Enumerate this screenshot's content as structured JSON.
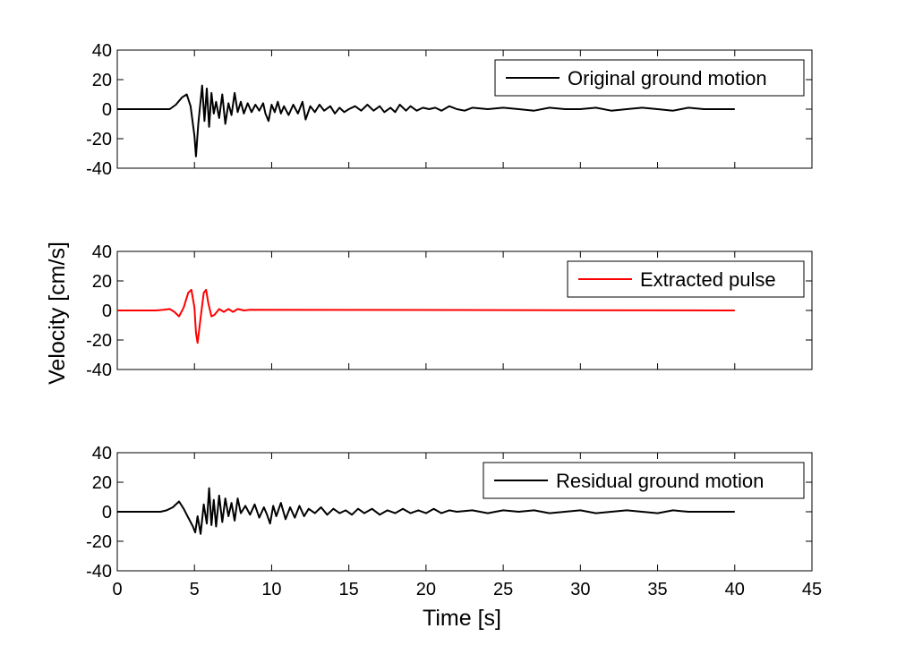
{
  "figure": {
    "xlabel": "Time [s]",
    "ylabel": "Velocity [cm/s]"
  },
  "chart_data": [
    {
      "type": "line",
      "xlabel": "",
      "ylabel": "",
      "xlim": [
        0,
        45
      ],
      "ylim": [
        -40,
        40
      ],
      "xticks": [
        0,
        5,
        10,
        15,
        20,
        25,
        30,
        35,
        40,
        45
      ],
      "yticks": [
        -40,
        -20,
        0,
        20,
        40
      ],
      "show_xtick_labels": false,
      "grid": false,
      "legend_position": "top-right",
      "series": [
        {
          "name": "Original ground motion",
          "color": "#000000",
          "x": [
            0,
            3.4,
            3.8,
            4.2,
            4.5,
            4.75,
            5.0,
            5.1,
            5.25,
            5.5,
            5.65,
            5.8,
            5.95,
            6.1,
            6.25,
            6.4,
            6.6,
            6.8,
            7.0,
            7.2,
            7.4,
            7.6,
            7.8,
            8.0,
            8.2,
            8.45,
            8.7,
            8.95,
            9.2,
            9.45,
            9.6,
            9.8,
            10.0,
            10.2,
            10.4,
            10.6,
            10.8,
            11.1,
            11.4,
            11.7,
            12.0,
            12.2,
            12.5,
            12.8,
            13.1,
            13.4,
            13.8,
            14.1,
            14.4,
            14.7,
            15.0,
            15.4,
            15.8,
            16.2,
            16.6,
            17.0,
            17.3,
            17.7,
            18.0,
            18.3,
            18.7,
            19.0,
            19.4,
            19.8,
            20.2,
            20.6,
            21.0,
            21.5,
            22.0,
            22.5,
            23.0,
            24.0,
            25.0,
            26.0,
            27.0,
            28.0,
            29.0,
            30.0,
            31.0,
            32.0,
            33.0,
            34.0,
            35.0,
            36.0,
            37.0,
            38.0,
            39.0,
            40.0
          ],
          "y": [
            0,
            0,
            3,
            8,
            10,
            2,
            -18,
            -32,
            -10,
            16,
            -8,
            14,
            -12,
            11,
            -3,
            5,
            -6,
            10,
            -10,
            4,
            -4,
            11,
            -2,
            5,
            -3,
            4,
            -2,
            3,
            -1,
            4,
            -3,
            -8,
            3,
            -2,
            5,
            -3,
            2,
            -4,
            3,
            -3,
            5,
            -7,
            2,
            -2,
            3,
            -1,
            2,
            -3,
            1,
            -2,
            0,
            2,
            -1,
            3,
            -1,
            2,
            -2,
            1,
            -2,
            3,
            -1,
            2,
            -1,
            1,
            0,
            1,
            -1,
            2,
            0,
            -1,
            1,
            0,
            1,
            0,
            -1,
            1,
            0,
            0,
            1,
            -1,
            0,
            1,
            0,
            -1,
            1,
            0,
            0,
            0
          ]
        }
      ]
    },
    {
      "type": "line",
      "xlabel": "",
      "ylabel": "",
      "xlim": [
        0,
        45
      ],
      "ylim": [
        -40,
        40
      ],
      "xticks": [
        0,
        5,
        10,
        15,
        20,
        25,
        30,
        35,
        40,
        45
      ],
      "yticks": [
        -40,
        -20,
        0,
        20,
        40
      ],
      "show_xtick_labels": false,
      "grid": false,
      "legend_position": "top-right",
      "series": [
        {
          "name": "Extracted pulse",
          "color": "#ff0000",
          "x": [
            0,
            2.5,
            3.0,
            3.4,
            3.7,
            4.0,
            4.3,
            4.6,
            4.8,
            5.0,
            5.1,
            5.2,
            5.4,
            5.6,
            5.75,
            5.9,
            6.1,
            6.3,
            6.6,
            6.9,
            7.2,
            7.5,
            7.8,
            8.2,
            8.6,
            40.0
          ],
          "y": [
            0,
            0,
            0.5,
            1,
            -1,
            -4,
            2,
            12,
            14,
            2,
            -15,
            -22,
            -5,
            12,
            14,
            5,
            -4,
            -3,
            1,
            -1,
            1,
            -1,
            1,
            0,
            0.5,
            0
          ]
        }
      ]
    },
    {
      "type": "line",
      "xlabel": "",
      "ylabel": "",
      "xlim": [
        0,
        45
      ],
      "ylim": [
        -40,
        40
      ],
      "xticks": [
        0,
        5,
        10,
        15,
        20,
        25,
        30,
        35,
        40,
        45
      ],
      "yticks": [
        -40,
        -20,
        0,
        20,
        40
      ],
      "show_xtick_labels": true,
      "grid": false,
      "legend_position": "top-right",
      "series": [
        {
          "name": "Residual ground motion",
          "color": "#000000",
          "x": [
            0,
            2.8,
            3.2,
            3.6,
            4.0,
            4.3,
            4.6,
            4.9,
            5.05,
            5.2,
            5.4,
            5.6,
            5.8,
            5.95,
            6.1,
            6.25,
            6.4,
            6.6,
            6.8,
            7.0,
            7.2,
            7.4,
            7.6,
            7.8,
            8.0,
            8.3,
            8.6,
            8.9,
            9.2,
            9.5,
            9.7,
            9.9,
            10.1,
            10.3,
            10.6,
            10.9,
            11.2,
            11.5,
            11.8,
            12.1,
            12.4,
            12.8,
            13.2,
            13.6,
            14.0,
            14.4,
            14.8,
            15.2,
            15.6,
            16.0,
            16.5,
            17.0,
            17.5,
            18.0,
            18.5,
            19.0,
            19.5,
            20.0,
            20.5,
            21.0,
            21.5,
            22.0,
            23.0,
            24.0,
            25.0,
            26.0,
            27.0,
            28.0,
            29.0,
            30.0,
            31.0,
            32.0,
            33.0,
            34.0,
            35.0,
            36.0,
            37.0,
            38.0,
            39.0,
            40.0
          ],
          "y": [
            0,
            0,
            1,
            3,
            7,
            2,
            -4,
            -10,
            -14,
            -3,
            -15,
            5,
            -8,
            16,
            -9,
            8,
            -10,
            11,
            -7,
            9,
            -3,
            6,
            -6,
            9,
            -1,
            4,
            -2,
            5,
            -4,
            3,
            -2,
            -8,
            4,
            -3,
            6,
            -5,
            3,
            -4,
            4,
            -3,
            2,
            -1,
            3,
            -2,
            2,
            -1,
            1,
            -2,
            2,
            -1,
            2,
            -2,
            1,
            -1,
            2,
            -1,
            1,
            -1,
            2,
            -1,
            1,
            0,
            1,
            -1,
            1,
            0,
            1,
            -1,
            0,
            1,
            -1,
            0,
            1,
            0,
            -1,
            1,
            0,
            0,
            0,
            0
          ]
        }
      ]
    }
  ]
}
